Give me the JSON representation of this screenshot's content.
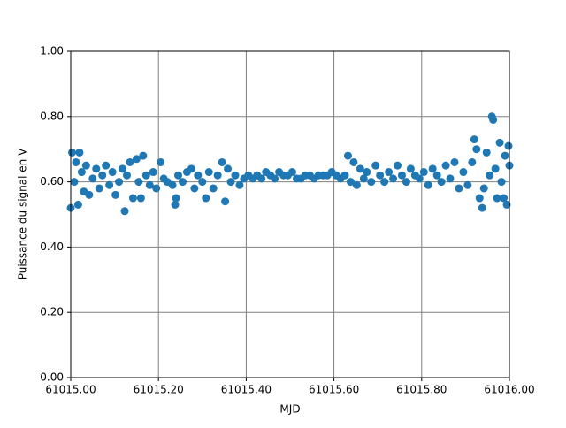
{
  "chart_data": {
    "type": "scatter",
    "xlabel": "MJD",
    "ylabel": "Puissance du signal en V",
    "xlim": [
      61015,
      61016
    ],
    "ylim": [
      0,
      1
    ],
    "xticks": [
      {
        "value": 61015,
        "label": "61015.00"
      },
      {
        "value": 61015.2,
        "label": "61015.20"
      },
      {
        "value": 61015.4,
        "label": "61015.40"
      },
      {
        "value": 61015.6,
        "label": "61015.60"
      },
      {
        "value": 61015.8,
        "label": "61015.80"
      },
      {
        "value": 61016,
        "label": "61016.00"
      }
    ],
    "yticks": [
      {
        "value": 0,
        "label": "0.00"
      },
      {
        "value": 0.2,
        "label": "0.20"
      },
      {
        "value": 0.4,
        "label": "0.40"
      },
      {
        "value": 0.6,
        "label": "0.60"
      },
      {
        "value": 0.8,
        "label": "0.80"
      },
      {
        "value": 1,
        "label": "1.00"
      }
    ],
    "grid": true,
    "color": "#1f77b4",
    "x": [
      61015.0,
      61015.003,
      61015.008,
      61015.012,
      61015.017,
      61015.02,
      61015.025,
      61015.03,
      61015.035,
      61015.042,
      61015.05,
      61015.058,
      61015.065,
      61015.072,
      61015.08,
      61015.088,
      61015.095,
      61015.102,
      61015.11,
      61015.118,
      61015.123,
      61015.128,
      61015.135,
      61015.142,
      61015.15,
      61015.155,
      61015.16,
      61015.165,
      61015.172,
      61015.18,
      61015.188,
      61015.195,
      61015.205,
      61015.212,
      61015.22,
      61015.232,
      61015.238,
      61015.24,
      61015.245,
      61015.255,
      61015.265,
      61015.275,
      61015.282,
      61015.29,
      61015.3,
      61015.308,
      61015.315,
      61015.325,
      61015.335,
      61015.345,
      61015.352,
      61015.358,
      61015.365,
      61015.375,
      61015.385,
      61015.395,
      61015.405,
      61015.415,
      61015.425,
      61015.435,
      61015.445,
      61015.455,
      61015.465,
      61015.475,
      61015.485,
      61015.495,
      61015.505,
      61015.515,
      61015.525,
      61015.535,
      61015.545,
      61015.555,
      61015.565,
      61015.575,
      61015.585,
      61015.595,
      61015.605,
      61015.615,
      61015.625,
      61015.632,
      61015.638,
      61015.645,
      61015.652,
      61015.66,
      61015.668,
      61015.675,
      61015.685,
      61015.695,
      61015.705,
      61015.715,
      61015.725,
      61015.735,
      61015.745,
      61015.755,
      61015.765,
      61015.775,
      61015.785,
      61015.795,
      61015.805,
      61015.815,
      61015.825,
      61015.835,
      61015.845,
      61015.855,
      61015.865,
      61015.875,
      61015.885,
      61015.895,
      61015.905,
      61015.915,
      61015.92,
      61015.925,
      61015.932,
      61015.938,
      61015.942,
      61015.948,
      61015.955,
      61015.96,
      61015.963,
      61015.968,
      61015.972,
      61015.978,
      61015.982,
      61015.987,
      61015.99,
      61015.994,
      61015.998,
      61016.0
    ],
    "y": [
      0.52,
      0.69,
      0.6,
      0.66,
      0.53,
      0.69,
      0.63,
      0.57,
      0.65,
      0.56,
      0.61,
      0.64,
      0.58,
      0.62,
      0.65,
      0.59,
      0.63,
      0.56,
      0.6,
      0.64,
      0.51,
      0.62,
      0.66,
      0.55,
      0.67,
      0.6,
      0.55,
      0.68,
      0.62,
      0.59,
      0.63,
      0.58,
      0.66,
      0.61,
      0.6,
      0.59,
      0.53,
      0.55,
      0.62,
      0.6,
      0.63,
      0.64,
      0.58,
      0.62,
      0.6,
      0.55,
      0.63,
      0.58,
      0.62,
      0.66,
      0.54,
      0.64,
      0.6,
      0.62,
      0.59,
      0.61,
      0.62,
      0.61,
      0.62,
      0.61,
      0.63,
      0.62,
      0.61,
      0.63,
      0.62,
      0.62,
      0.63,
      0.61,
      0.61,
      0.62,
      0.62,
      0.61,
      0.62,
      0.62,
      0.62,
      0.63,
      0.62,
      0.61,
      0.62,
      0.68,
      0.6,
      0.66,
      0.59,
      0.64,
      0.61,
      0.63,
      0.6,
      0.65,
      0.62,
      0.6,
      0.63,
      0.61,
      0.65,
      0.62,
      0.6,
      0.64,
      0.62,
      0.61,
      0.63,
      0.59,
      0.64,
      0.62,
      0.6,
      0.65,
      0.61,
      0.66,
      0.58,
      0.63,
      0.59,
      0.66,
      0.73,
      0.7,
      0.55,
      0.52,
      0.58,
      0.69,
      0.62,
      0.8,
      0.79,
      0.64,
      0.55,
      0.72,
      0.6,
      0.55,
      0.68,
      0.53,
      0.71,
      0.65
    ]
  }
}
